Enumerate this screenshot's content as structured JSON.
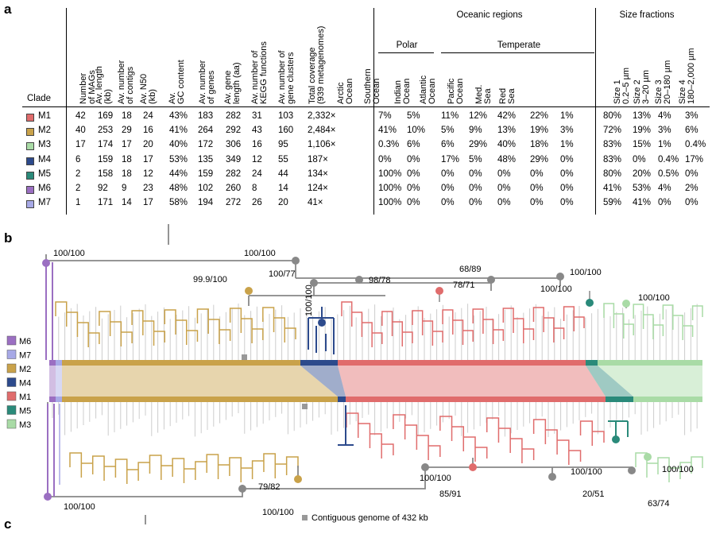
{
  "panel_a": {
    "letter": "a",
    "clade_header": "Clade",
    "columns": [
      {
        "id": "n_mags",
        "lines": [
          "Number",
          "of MAGs"
        ]
      },
      {
        "id": "av_length",
        "lines": [
          "Av. length",
          "(kb)"
        ]
      },
      {
        "id": "av_contigs",
        "lines": [
          "Av. number",
          "of contigs"
        ]
      },
      {
        "id": "av_n50",
        "lines": [
          "Av. N50",
          "(kb)"
        ]
      },
      {
        "id": "gc",
        "lines": [
          "Av.",
          "GC content"
        ]
      },
      {
        "id": "genes",
        "lines": [
          "Av. number",
          "of genes"
        ]
      },
      {
        "id": "gene_len",
        "lines": [
          "Av. gene",
          "length (aa)"
        ]
      },
      {
        "id": "kegg",
        "lines": [
          "Av. number of",
          "KEGG functions"
        ]
      },
      {
        "id": "clusters",
        "lines": [
          "Av. number of",
          "gene clusters"
        ]
      },
      {
        "id": "coverage",
        "lines": [
          "Total coverage",
          "(939 metagenomes)"
        ]
      },
      {
        "id": "arctic",
        "lines": [
          "Arctic",
          "Ocean"
        ]
      },
      {
        "id": "southern",
        "lines": [
          "Southern",
          "Ocean"
        ]
      },
      {
        "id": "indian",
        "lines": [
          "Indian",
          "Ocean"
        ]
      },
      {
        "id": "atlantic",
        "lines": [
          "Atlantic",
          "Ocean"
        ]
      },
      {
        "id": "pacific",
        "lines": [
          "Pacific",
          "Ocean"
        ]
      },
      {
        "id": "med",
        "lines": [
          "Med.",
          "Sea"
        ]
      },
      {
        "id": "red",
        "lines": [
          "Red",
          "Sea"
        ]
      },
      {
        "id": "size1",
        "lines": [
          "Size 1",
          "0.2–5 µm"
        ]
      },
      {
        "id": "size2",
        "lines": [
          "Size 2",
          "3–20 µm"
        ]
      },
      {
        "id": "size3",
        "lines": [
          "Size 3",
          "20–180 µm"
        ]
      },
      {
        "id": "size4",
        "lines": [
          "Size 4",
          "180–2,000 µm"
        ]
      }
    ],
    "group_headers": {
      "oceanic": "Oceanic regions",
      "polar": "Polar",
      "temperate": "Temperate",
      "size": "Size fractions"
    },
    "rows": [
      {
        "clade": "M1",
        "color": "#e06c6c",
        "values": [
          "42",
          "169",
          "18",
          "24",
          "43%",
          "183",
          "282",
          "31",
          "103",
          "2,332×",
          "7%",
          "5%",
          "11%",
          "12%",
          "42%",
          "22%",
          "1%",
          "80%",
          "13%",
          "4%",
          "3%"
        ]
      },
      {
        "clade": "M2",
        "color": "#c9a24a",
        "values": [
          "40",
          "253",
          "29",
          "16",
          "41%",
          "264",
          "292",
          "43",
          "160",
          "2,484×",
          "41%",
          "10%",
          "5%",
          "9%",
          "13%",
          "19%",
          "3%",
          "72%",
          "19%",
          "3%",
          "6%"
        ]
      },
      {
        "clade": "M3",
        "color": "#a9dba6",
        "values": [
          "17",
          "174",
          "17",
          "20",
          "40%",
          "172",
          "306",
          "16",
          "95",
          "1,106×",
          "0.3%",
          "6%",
          "6%",
          "29%",
          "40%",
          "18%",
          "1%",
          "83%",
          "15%",
          "1%",
          "0.4%"
        ]
      },
      {
        "clade": "M4",
        "color": "#2c4a8c",
        "values": [
          "6",
          "159",
          "18",
          "17",
          "53%",
          "135",
          "349",
          "12",
          "55",
          "187×",
          "0%",
          "0%",
          "17%",
          "5%",
          "48%",
          "29%",
          "0%",
          "83%",
          "0%",
          "0.4%",
          "17%"
        ]
      },
      {
        "clade": "M5",
        "color": "#2a8a7a",
        "values": [
          "2",
          "158",
          "18",
          "12",
          "44%",
          "159",
          "282",
          "24",
          "44",
          "134×",
          "100%",
          "0%",
          "0%",
          "0%",
          "0%",
          "0%",
          "0%",
          "80%",
          "20%",
          "0.5%",
          "0%"
        ]
      },
      {
        "clade": "M6",
        "color": "#9b6fc2",
        "values": [
          "2",
          "92",
          "9",
          "23",
          "48%",
          "102",
          "260",
          "8",
          "14",
          "124×",
          "100%",
          "0%",
          "0%",
          "0%",
          "0%",
          "0%",
          "0%",
          "41%",
          "53%",
          "4%",
          "2%"
        ]
      },
      {
        "clade": "M7",
        "color": "#a7a9e6",
        "values": [
          "1",
          "171",
          "14",
          "17",
          "58%",
          "194",
          "272",
          "26",
          "20",
          "41×",
          "100%",
          "0%",
          "0%",
          "0%",
          "0%",
          "0%",
          "0%",
          "59%",
          "41%",
          "0%",
          "0%"
        ]
      }
    ]
  },
  "panel_b": {
    "letter": "b",
    "legend": [
      {
        "label": "M6",
        "color": "#9b6fc2"
      },
      {
        "label": "M7",
        "color": "#a7a9e6"
      },
      {
        "label": "M2",
        "color": "#c9a24a"
      },
      {
        "label": "M4",
        "color": "#2c4a8c"
      },
      {
        "label": "M1",
        "color": "#e06c6c"
      },
      {
        "label": "M5",
        "color": "#2a8a7a"
      },
      {
        "label": "M3",
        "color": "#a9dba6"
      }
    ],
    "top_support": [
      "100/100",
      "100/100",
      "100/77",
      "99.9/100",
      "100/100",
      "98/78",
      "78/71",
      "68/89",
      "100/100",
      "100/100",
      "100/100"
    ],
    "bottom_support": [
      "100/100",
      "100/100",
      "79/82",
      "85/91",
      "100/100",
      "20/51",
      "63/74",
      "100/100",
      "100/100"
    ],
    "note": "Contiguous genome of 432 kb"
  },
  "panel_c": {
    "letter": "c"
  }
}
